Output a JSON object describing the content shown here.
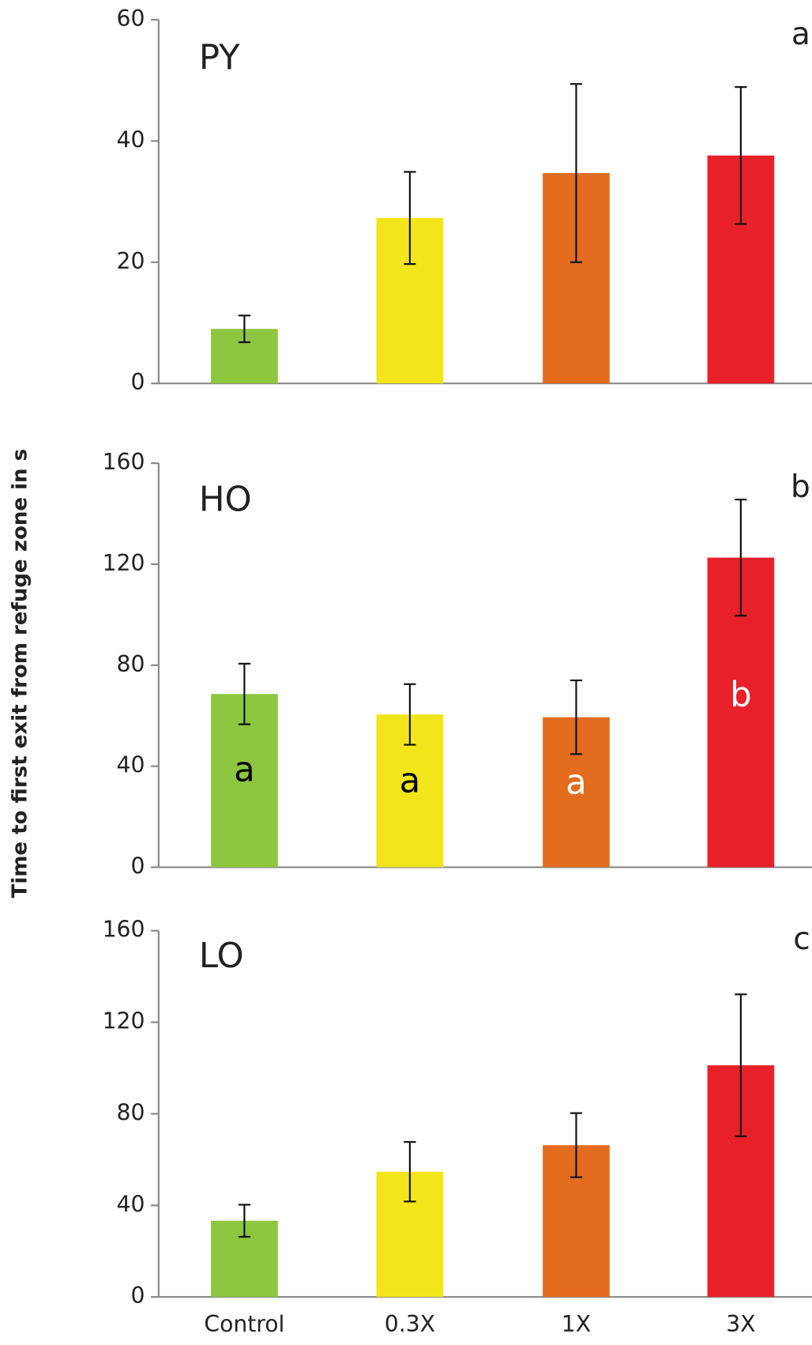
{
  "chart_data": [
    {
      "type": "bar",
      "title": "PY",
      "panel_label": "a",
      "values": [
        9,
        27.3,
        34.7,
        37.6
      ],
      "errors": [
        2.2,
        7.6,
        14.7,
        11.3
      ],
      "colors": [
        "#8dc63f",
        "#f2e61a",
        "#e36c1f",
        "#e8202a"
      ],
      "ylim": [
        0,
        60
      ],
      "yticks": [
        0,
        20,
        40,
        60
      ]
    },
    {
      "type": "bar",
      "title": "HO",
      "panel_label": "b",
      "ylabel": "Time to first exit from refuge zone in s",
      "values": [
        68.6,
        60.5,
        59.4,
        122.6
      ],
      "errors": [
        12,
        12,
        14.6,
        23
      ],
      "colors": [
        "#8dc63f",
        "#f2e61a",
        "#e36c1f",
        "#e8202a"
      ],
      "annotations": [
        {
          "text": "a",
          "color": "#000000"
        },
        {
          "text": "a",
          "color": "#000000"
        },
        {
          "text": "a",
          "color": "#ffffff"
        },
        {
          "text": "b",
          "color": "#ffffff"
        }
      ],
      "ylim": [
        0,
        160
      ],
      "yticks": [
        0,
        40,
        80,
        120,
        160
      ]
    },
    {
      "type": "bar",
      "title": "LO",
      "panel_label": "c",
      "categories": [
        "Control",
        "0.3X",
        "1X",
        "3X"
      ],
      "values": [
        33.3,
        54.7,
        66.3,
        101.2
      ],
      "errors": [
        7,
        13,
        14,
        31
      ],
      "colors": [
        "#8dc63f",
        "#f2e61a",
        "#e36c1f",
        "#e8202a"
      ],
      "ylim": [
        0,
        160
      ],
      "yticks": [
        0,
        40,
        80,
        120,
        160
      ]
    }
  ]
}
